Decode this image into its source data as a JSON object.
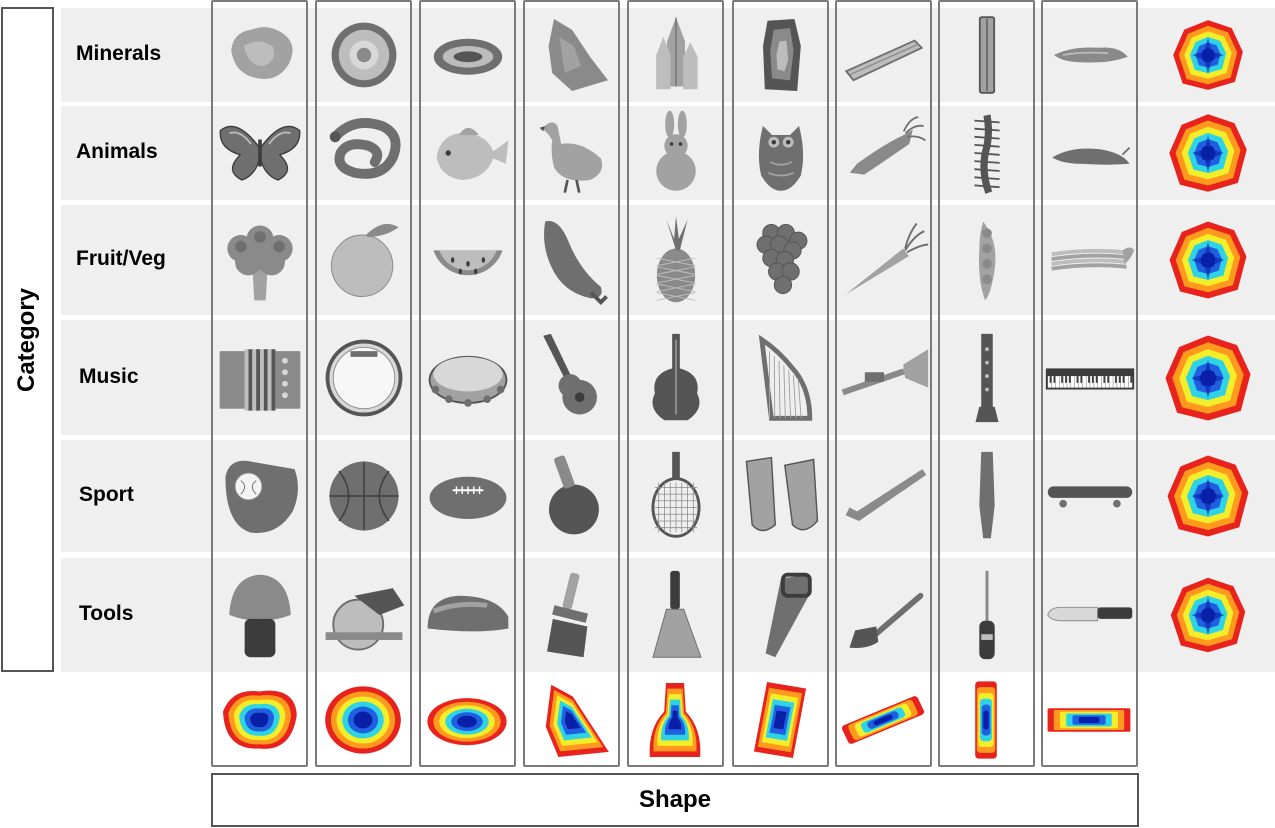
{
  "category_axis_label": "Category",
  "shape_axis_label": "Shape",
  "rows": [
    {
      "label": "Minerals"
    },
    {
      "label": "Animals"
    },
    {
      "label": "Fruit/Veg"
    },
    {
      "label": "Music"
    },
    {
      "label": "Sport"
    },
    {
      "label": "Tools"
    }
  ],
  "items": [
    [
      "rock",
      "geode",
      "geode-slice",
      "rock-shard",
      "quartz-crystal",
      "agate-slice",
      "quartz-rod",
      "tourmaline-crystal",
      "flat-stone"
    ],
    [
      "butterfly",
      "snake",
      "fish",
      "goose",
      "rabbit",
      "owl",
      "squid",
      "centipede",
      "slug"
    ],
    [
      "broccoli",
      "orange",
      "watermelon-slice",
      "pepper",
      "pineapple",
      "grapes",
      "carrot",
      "pea-pod",
      "celery"
    ],
    [
      "accordion",
      "drum",
      "tambourine",
      "guitar",
      "double-bass",
      "harp",
      "trumpet",
      "clarinet",
      "keyboard"
    ],
    [
      "baseball-glove",
      "basketball",
      "american-football",
      "ping-pong-paddle",
      "tennis-racket",
      "swim-fins",
      "hockey-stick",
      "baseball-bat",
      "skateboard"
    ],
    [
      "shaving-brush",
      "circular-saw",
      "stapler",
      "paint-brush",
      "spatula",
      "hand-saw",
      "hammer",
      "screwdriver",
      "kitchen-knife"
    ]
  ],
  "shape_heatmaps": [
    "blob",
    "round",
    "oval",
    "diagonal-shard",
    "bottle",
    "tilted-rect",
    "diagonal-bar",
    "vertical-bar",
    "horizontal-bar"
  ],
  "category_heatmaps": [
    "minerals",
    "animals",
    "fruit-veg",
    "music",
    "sport",
    "tools"
  ],
  "colors": {
    "row_band": "#efefef",
    "frame": "#7a7a7a",
    "heat_outer": "#e8231d",
    "heat_orange": "#ff9a1f",
    "heat_yellow": "#f3ee2a",
    "heat_cyan": "#2fd3e6",
    "heat_blue": "#1f5fe0",
    "heat_core": "#0a1fa8"
  }
}
